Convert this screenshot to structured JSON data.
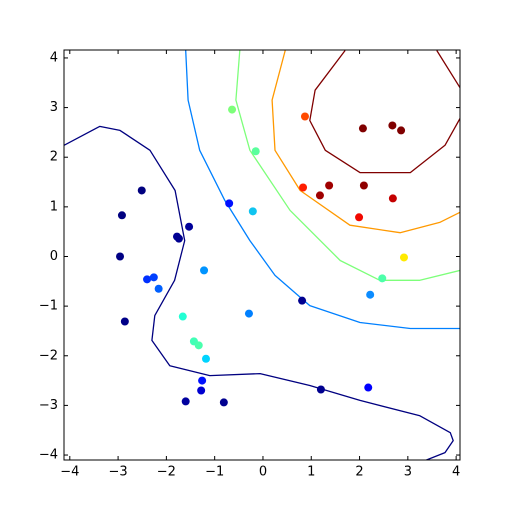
{
  "chart_data": {
    "type": "contour",
    "xlim": [
      -4.12,
      4.08
    ],
    "ylim": [
      -4.1,
      4.16
    ],
    "xticks": [
      {
        "value": -4,
        "label": "−4"
      },
      {
        "value": -3,
        "label": "−3"
      },
      {
        "value": -2,
        "label": "−2"
      },
      {
        "value": -1,
        "label": "−1"
      },
      0,
      1,
      2,
      3,
      4
    ],
    "yticks": [
      {
        "value": -4,
        "label": "−4"
      },
      {
        "value": -3,
        "label": "−3"
      },
      {
        "value": -2,
        "label": "−2"
      },
      {
        "value": -1,
        "label": "−1"
      },
      0,
      1,
      2,
      3,
      4
    ],
    "contours": [
      {
        "color": "#000080",
        "x": [
          -4.12,
          -3.38,
          -2.96,
          -2.34,
          -1.82,
          -1.62,
          -1.83,
          -2.24,
          -2.3,
          -1.93,
          -1.1,
          -0.06,
          0.97,
          2.01,
          3.25,
          3.88,
          3.94,
          3.77,
          3.36
        ],
        "y": [
          2.24,
          2.62,
          2.54,
          2.14,
          1.33,
          0.32,
          -0.48,
          -1.19,
          -1.69,
          -2.2,
          -2.4,
          -2.36,
          -2.6,
          -2.9,
          -3.21,
          -3.55,
          -3.71,
          -3.95,
          -4.11
        ]
      },
      {
        "color": "#0080ff",
        "x": [
          -1.6,
          -1.55,
          -1.31,
          -0.79,
          -0.27,
          0.25,
          0.97,
          2.01,
          3.05,
          4.08
        ],
        "y": [
          4.15,
          3.15,
          2.14,
          1.13,
          0.32,
          -0.38,
          -0.99,
          -1.33,
          -1.45,
          -1.45
        ]
      },
      {
        "color": "#7dff7a",
        "x": [
          -0.48,
          -0.56,
          -0.27,
          0.56,
          1.6,
          2.42,
          3.25,
          4.08
        ],
        "y": [
          4.15,
          3.15,
          2.14,
          0.93,
          -0.08,
          -0.48,
          -0.48,
          -0.28
        ]
      },
      {
        "color": "#ff9900",
        "x": [
          0.46,
          0.19,
          0.25,
          0.77,
          1.8,
          2.84,
          3.67,
          4.08
        ],
        "y": [
          4.15,
          3.15,
          2.14,
          1.33,
          0.63,
          0.48,
          0.69,
          0.89
        ]
      },
      {
        "color": "#800000",
        "x": [
          1.7,
          1.08,
          0.97,
          1.29,
          2.01,
          3.05,
          3.77,
          4.08,
          null,
          3.6,
          4.08
        ],
        "y": [
          4.15,
          3.35,
          2.74,
          2.14,
          1.69,
          1.69,
          2.24,
          2.78,
          null,
          4.15,
          3.4
        ]
      }
    ],
    "points": {
      "x": [
        -0.64,
        -0.15,
        0.87,
        2.07,
        2.68,
        2.86,
        0.83,
        1.18,
        1.37,
        2.09,
        2.69,
        1.99,
        2.92,
        2.47,
        2.22,
        0.81,
        -0.7,
        -0.21,
        -2.51,
        -2.92,
        -2.96,
        -1.78,
        -1.74,
        -1.53,
        -1.22,
        -2.4,
        -2.26,
        -2.16,
        -2.86,
        -1.66,
        -0.29,
        -1.43,
        -1.33,
        -1.18,
        -1.26,
        -1.28,
        -1.6,
        -0.81,
        1.2,
        2.18
      ],
      "y": [
        2.96,
        2.12,
        2.82,
        2.58,
        2.64,
        2.54,
        1.39,
        1.23,
        1.43,
        1.43,
        1.17,
        0.79,
        -0.02,
        -0.44,
        -0.77,
        -0.89,
        1.07,
        0.91,
        1.33,
        0.83,
        0.0,
        0.4,
        0.36,
        0.6,
        -0.28,
        -0.46,
        -0.42,
        -0.65,
        -1.31,
        -1.21,
        -1.15,
        -1.71,
        -1.79,
        -2.06,
        -2.5,
        -2.7,
        -2.92,
        -2.94,
        -2.68,
        -2.64
      ],
      "colors": [
        "#7dff7a",
        "#5aff9d",
        "#ff4a00",
        "#800000",
        "#800000",
        "#800000",
        "#ff1e00",
        "#9f0000",
        "#a00000",
        "#8f0000",
        "#c40000",
        "#f10800",
        "#ffea00",
        "#4dffaa",
        "#0c8cff",
        "#00008f",
        "#0010ff",
        "#0fc4f0",
        "#00007f",
        "#000080",
        "#000084",
        "#000095",
        "#000090",
        "#00009a",
        "#0094ff",
        "#0030ff",
        "#0040ff",
        "#0060ff",
        "#000088",
        "#23ffd4",
        "#0080ff",
        "#40ffb6",
        "#49ffad",
        "#00d4ff",
        "#0010ff",
        "#0000d0",
        "#00009f",
        "#000090",
        "#00008f",
        "#0000ff"
      ]
    }
  }
}
